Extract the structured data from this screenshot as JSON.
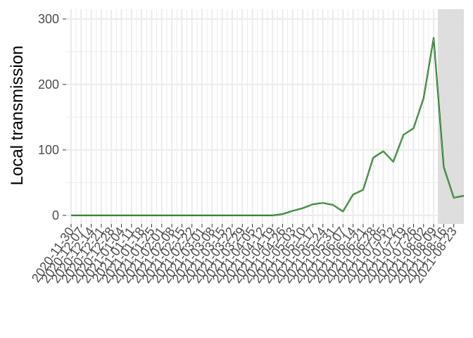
{
  "chart_data": {
    "type": "line",
    "ylabel": "Local transmission",
    "xlabel": "",
    "ylim": [
      0,
      315
    ],
    "yticks": [
      0,
      100,
      200,
      300
    ],
    "grid": true,
    "x_tick_labels": [
      "2020-11-30",
      "2020-12-07",
      "2020-12-14",
      "2020-12-21",
      "2020-12-28",
      "2021-01-04",
      "2021-01-11",
      "2021-01-18",
      "2021-01-25",
      "2021-02-01",
      "2021-02-08",
      "2021-02-15",
      "2021-02-22",
      "2021-03-01",
      "2021-03-08",
      "2021-03-15",
      "2021-03-22",
      "2021-03-29",
      "2021-04-05",
      "2021-04-12",
      "2021-04-19",
      "2021-04-26",
      "2021-05-03",
      "2021-05-10",
      "2021-05-17",
      "2021-05-24",
      "2021-05-31",
      "2021-06-07",
      "2021-06-14",
      "2021-06-21",
      "2021-06-28",
      "2021-07-05",
      "2021-07-12",
      "2021-07-19",
      "2021-07-26",
      "2021-08-02",
      "2021-08-09",
      "2021-08-16",
      "2021-08-23"
    ],
    "x": [
      "2020-11-30",
      "2020-12-07",
      "2020-12-14",
      "2020-12-21",
      "2020-12-28",
      "2021-01-04",
      "2021-01-11",
      "2021-01-18",
      "2021-01-25",
      "2021-02-01",
      "2021-02-08",
      "2021-02-15",
      "2021-02-22",
      "2021-03-01",
      "2021-03-08",
      "2021-03-15",
      "2021-03-22",
      "2021-03-29",
      "2021-04-05",
      "2021-04-12",
      "2021-04-19",
      "2021-04-26",
      "2021-05-03",
      "2021-05-10",
      "2021-05-17",
      "2021-05-24",
      "2021-05-31",
      "2021-06-07",
      "2021-06-14",
      "2021-06-21",
      "2021-06-28",
      "2021-07-05",
      "2021-07-12",
      "2021-07-19",
      "2021-07-26",
      "2021-08-02",
      "2021-08-09",
      "2021-08-16",
      "2021-08-23",
      "2021-08-30"
    ],
    "values": [
      0,
      0,
      0,
      0,
      0,
      0,
      0,
      0,
      0,
      0,
      0,
      0,
      0,
      0,
      0,
      0,
      0,
      0,
      0,
      0,
      0,
      2,
      7,
      11,
      17,
      19,
      16,
      6,
      32,
      39,
      88,
      98,
      82,
      123,
      133,
      179,
      271,
      74,
      27,
      30
    ],
    "shaded_region": {
      "from": "2021-08-09",
      "to": "2021-08-30"
    },
    "colors": {
      "line_outer": "#006400",
      "line_inner": "#8fbc8f",
      "shade": "#dcdcdc",
      "grid": "#ebebeb"
    }
  }
}
